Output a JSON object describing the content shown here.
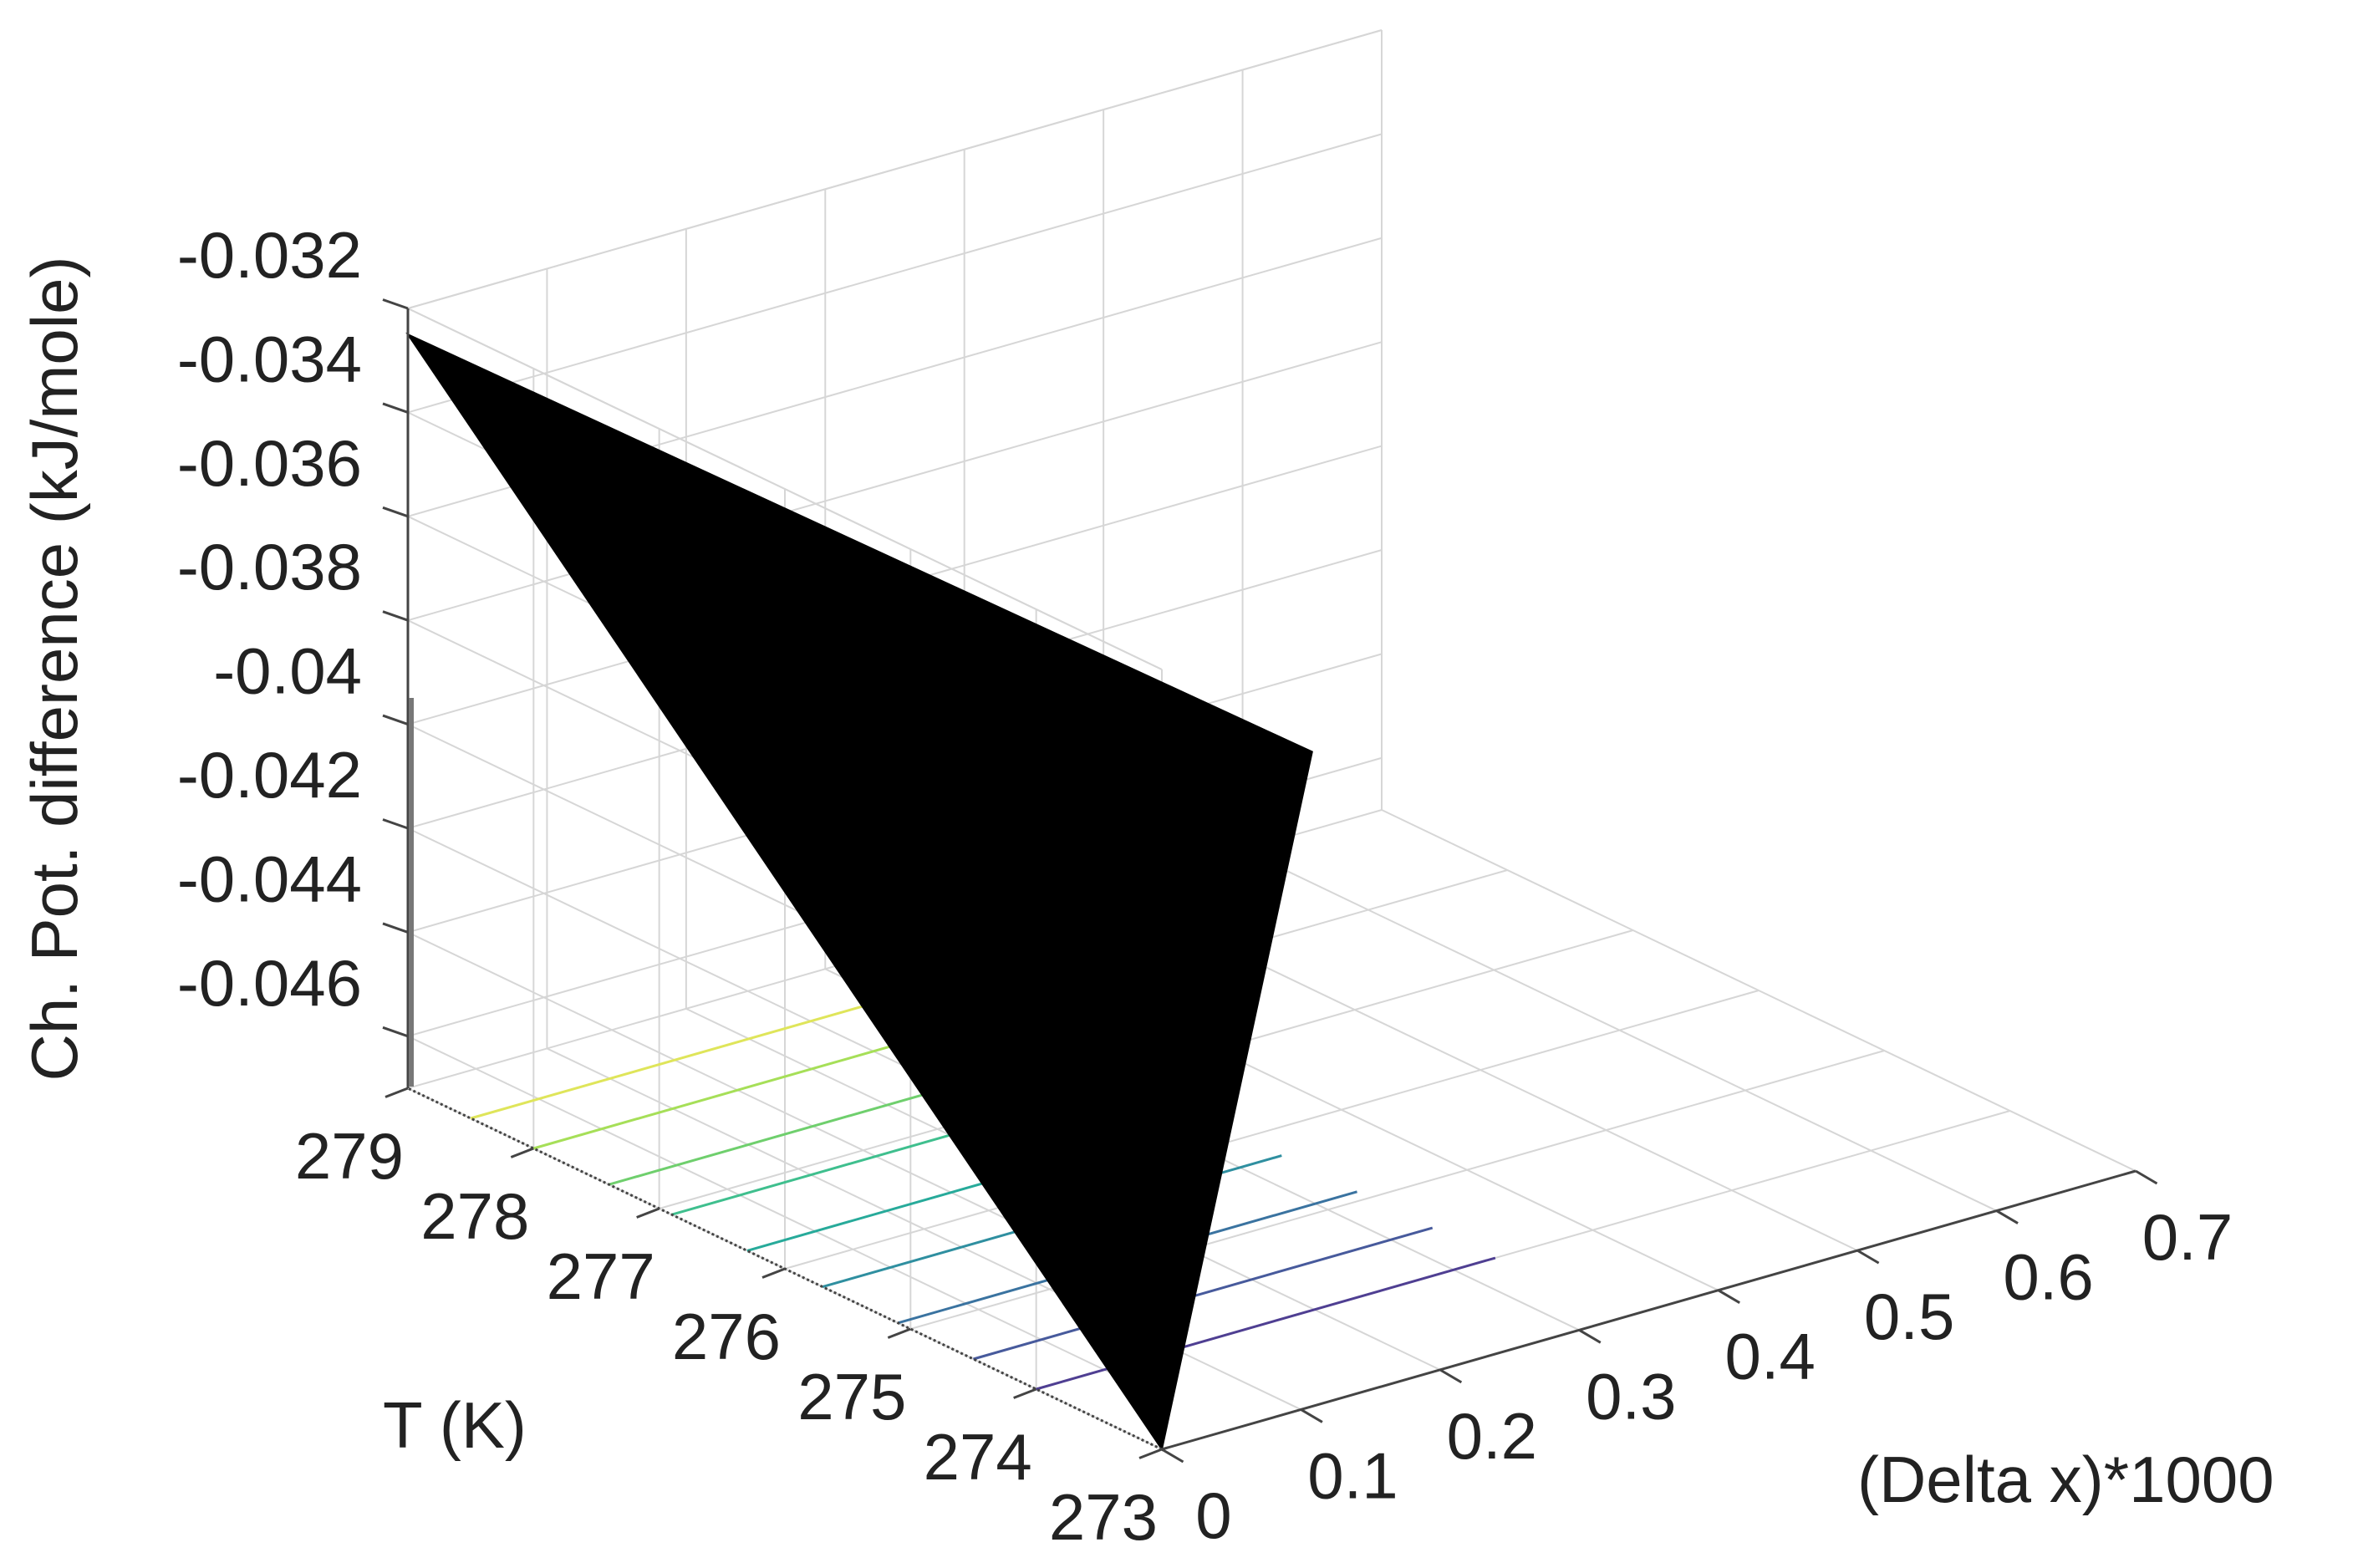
{
  "chart_data": {
    "type": "surface3d",
    "title": "",
    "xlabel": "(Delta x)*1000",
    "ylabel": "T (K)",
    "zlabel": "Ch. Pot. difference (kJ/mole)",
    "xlim": [
      0,
      0.7
    ],
    "ylim": [
      273,
      279
    ],
    "zlim": [
      -0.047,
      -0.032
    ],
    "x_ticks": [
      "0",
      "0.1",
      "0.2",
      "0.3",
      "0.4",
      "0.5",
      "0.6",
      "0.7"
    ],
    "y_ticks": [
      "273",
      "274",
      "275",
      "276",
      "277",
      "278",
      "279"
    ],
    "z_ticks": [
      "-0.032",
      "-0.034",
      "-0.036",
      "-0.038",
      "-0.04",
      "-0.042",
      "-0.044",
      "-0.046"
    ],
    "grid": true,
    "surface_color": "#000000",
    "surface_corners": [
      {
        "x": 0.0,
        "y": 279,
        "z": -0.0325
      },
      {
        "x": 0.65,
        "y": 279,
        "z": -0.0455
      },
      {
        "x": 0.0,
        "y": 273,
        "z": -0.047
      }
    ],
    "contour_levels": [
      {
        "y": 278.5,
        "color": "#dfe55a"
      },
      {
        "y": 278.0,
        "color": "#a6df58"
      },
      {
        "y": 277.4,
        "color": "#6fcf6d"
      },
      {
        "y": 276.9,
        "color": "#3fbf8e"
      },
      {
        "y": 276.3,
        "color": "#27aa9a"
      },
      {
        "y": 275.7,
        "color": "#2f8fa0"
      },
      {
        "y": 275.1,
        "color": "#3a73a0"
      },
      {
        "y": 274.5,
        "color": "#475a9c"
      },
      {
        "y": 274.0,
        "color": "#4f3f92"
      }
    ]
  }
}
